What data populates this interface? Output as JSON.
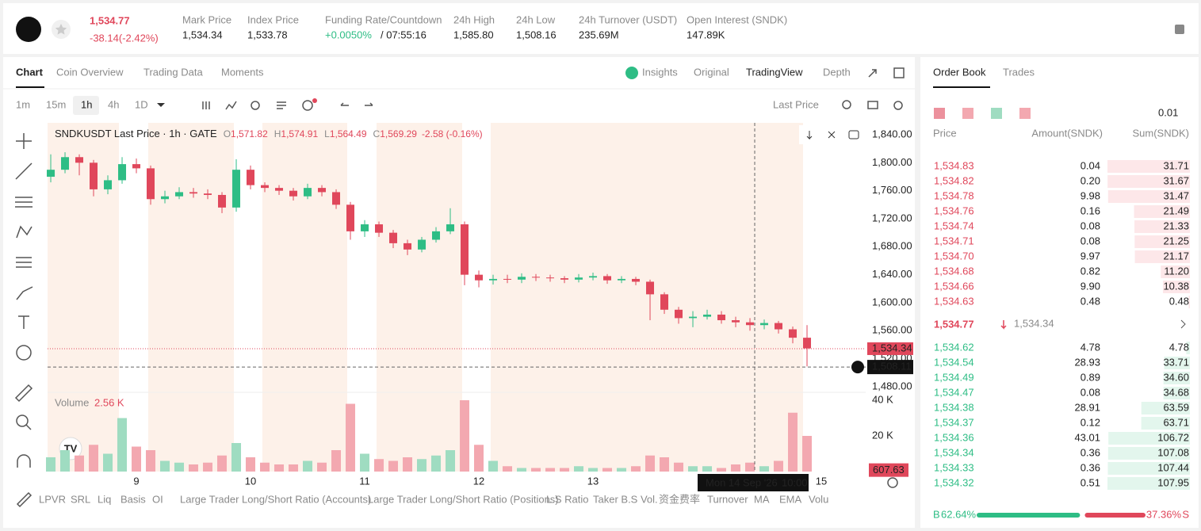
{
  "header": {
    "price": "1,534.77",
    "change": "-38.14(-2.42%)",
    "stats": [
      {
        "label": "Mark Price",
        "value": "1,534.34"
      },
      {
        "label": "Index Price",
        "value": "1,533.78"
      },
      {
        "label": "Funding Rate/Countdown",
        "value": "+0.0050%",
        "countdown": "/ 07:55:16"
      },
      {
        "label": "24h High",
        "value": "1,585.80"
      },
      {
        "label": "24h Low",
        "value": "1,508.16"
      },
      {
        "label": "24h Turnover (USDT)",
        "value": "235.69M"
      },
      {
        "label": "Open Interest (SNDK)",
        "value": "147.89K"
      }
    ]
  },
  "chart_tabs": [
    "Chart",
    "Coin Overview",
    "Trading Data",
    "Moments"
  ],
  "view_tabs": [
    "Insights",
    "Original",
    "TradingView",
    "Depth"
  ],
  "intervals": [
    "1m",
    "15m",
    "1h",
    "4h",
    "1D"
  ],
  "price_type": "Last Price",
  "legend": {
    "title": "SNDKUSDT Last Price · 1h · GATE",
    "ohlc": [
      {
        "k": "O",
        "v": "1,571.82"
      },
      {
        "k": "H",
        "v": "1,574.91"
      },
      {
        "k": "L",
        "v": "1,564.49"
      },
      {
        "k": "C",
        "v": "1,569.29"
      }
    ],
    "change": "-2.58 (-0.16%)",
    "volume_title": "Volume",
    "volume_value": "2.56 K"
  },
  "indicators": [
    "LPVR",
    "SRL",
    "Liq",
    "Basis",
    "OI",
    "Large Trader Long/Short Ratio (Accounts)",
    "Large Trader Long/Short Ratio (Positions)",
    "L.S Ratio",
    "Taker B.S Vol.",
    "资金费率",
    "Turnover",
    "MA",
    "EMA",
    "Volu"
  ],
  "chart_data": {
    "type": "candlestick",
    "x": [
      -18,
      -15,
      -12,
      -9,
      -6,
      -3,
      0,
      3,
      6,
      9,
      12,
      15,
      18,
      21,
      24,
      27,
      30,
      33,
      36,
      39,
      42,
      45,
      48,
      51,
      54,
      57,
      60,
      63,
      66,
      69,
      72,
      75,
      78,
      81,
      84,
      87,
      90,
      93,
      96,
      99,
      102,
      105,
      108,
      111,
      114,
      117,
      120,
      123,
      126,
      129,
      132,
      135,
      138,
      141
    ],
    "open": [
      1780,
      1790,
      1808,
      1800,
      1762,
      1775,
      1798,
      1792,
      1748,
      1752,
      1758,
      1756,
      1754,
      1736,
      1790,
      1768,
      1764,
      1760,
      1752,
      1764,
      1758,
      1740,
      1702,
      1712,
      1700,
      1685,
      1676,
      1690,
      1702,
      1712,
      1640,
      1632,
      1634,
      1633,
      1637,
      1636,
      1635,
      1633,
      1636,
      1638,
      1632,
      1634,
      1630,
      1612,
      1590,
      1578,
      1580,
      1583,
      1575,
      1572,
      1568,
      1571,
      1562,
      1550
    ],
    "high": [
      1812,
      1815,
      1812,
      1804,
      1782,
      1808,
      1806,
      1796,
      1760,
      1765,
      1764,
      1762,
      1758,
      1805,
      1796,
      1772,
      1768,
      1764,
      1770,
      1768,
      1762,
      1744,
      1718,
      1716,
      1704,
      1690,
      1694,
      1708,
      1735,
      1716,
      1646,
      1640,
      1640,
      1642,
      1641,
      1640,
      1638,
      1641,
      1643,
      1641,
      1638,
      1637,
      1633,
      1615,
      1594,
      1588,
      1590,
      1588,
      1580,
      1578,
      1576,
      1574,
      1566,
      1568
    ],
    "low": [
      1772,
      1785,
      1782,
      1752,
      1755,
      1770,
      1785,
      1740,
      1742,
      1748,
      1750,
      1748,
      1728,
      1730,
      1762,
      1758,
      1754,
      1746,
      1748,
      1752,
      1734,
      1690,
      1694,
      1694,
      1678,
      1668,
      1672,
      1686,
      1698,
      1625,
      1622,
      1626,
      1628,
      1628,
      1631,
      1630,
      1628,
      1629,
      1632,
      1627,
      1628,
      1625,
      1575,
      1584,
      1570,
      1565,
      1576,
      1570,
      1565,
      1560,
      1562,
      1556,
      1542,
      1509
    ],
    "close": [
      1790,
      1808,
      1800,
      1762,
      1775,
      1798,
      1792,
      1748,
      1752,
      1758,
      1756,
      1754,
      1736,
      1790,
      1768,
      1764,
      1760,
      1752,
      1764,
      1758,
      1740,
      1702,
      1712,
      1700,
      1685,
      1676,
      1690,
      1702,
      1712,
      1640,
      1632,
      1634,
      1633,
      1637,
      1636,
      1635,
      1633,
      1636,
      1638,
      1632,
      1634,
      1630,
      1612,
      1590,
      1578,
      1580,
      1583,
      1575,
      1572,
      1568,
      1571,
      1562,
      1550,
      1534.77
    ],
    "volume": [
      8000,
      12000,
      9000,
      15000,
      10000,
      30000,
      14000,
      12000,
      6000,
      5000,
      4000,
      5000,
      9000,
      16000,
      8000,
      5000,
      4000,
      4000,
      6000,
      5000,
      12000,
      38000,
      10000,
      7000,
      6000,
      8000,
      7000,
      9000,
      12000,
      40000,
      15000,
      6000,
      3000,
      2000,
      2000,
      2000,
      2000,
      3000,
      2000,
      2000,
      2000,
      3000,
      9000,
      8000,
      5000,
      3000,
      3000,
      2000,
      4000,
      5000,
      3000,
      6000,
      33000,
      20000
    ],
    "xlim": [
      -18.67,
      153.33
    ],
    "xticks": [
      {
        "value": 0,
        "label": "9"
      },
      {
        "value": 24,
        "label": "10"
      },
      {
        "value": 48,
        "label": "11"
      },
      {
        "value": 72,
        "label": "12"
      },
      {
        "value": 96,
        "label": "13"
      },
      {
        "value": 144,
        "label": "15"
      }
    ],
    "ylim": [
      1472,
      1857
    ],
    "yticks": [
      {
        "value": 1480,
        "label": "1,480.00"
      },
      {
        "value": 1520,
        "label": "1,520.00"
      },
      {
        "value": 1560,
        "label": "1,560.00"
      },
      {
        "value": 1600,
        "label": "1,600.00"
      },
      {
        "value": 1640,
        "label": "1,640.00"
      },
      {
        "value": 1680,
        "label": "1,680.00"
      },
      {
        "value": 1720,
        "label": "1,720.00"
      },
      {
        "value": 1760,
        "label": "1,760.00"
      },
      {
        "value": 1800,
        "label": "1,800.00"
      },
      {
        "value": 1840,
        "label": "1,840.00"
      }
    ],
    "vlim": [
      0,
      44444
    ],
    "vticks": [
      {
        "value": 20000,
        "label": "20 K"
      },
      {
        "value": 40000,
        "label": "40 K"
      }
    ],
    "up_color": "#2ebd85",
    "down_color": "#e0475b",
    "up_volume_color": "#9fdcc1",
    "down_volume_color": "#f3a8b0",
    "last_price": {
      "value": 1534.34,
      "label": "1,534.34"
    },
    "crosshair": {
      "value": 1508.11,
      "label": "1,508.11",
      "x": 130,
      "date": "Mon 14 Sep '26",
      "time": "10:00"
    },
    "current_volume": {
      "value": 607.63,
      "label": "607.63"
    }
  },
  "order_book": {
    "tabs": [
      "Order Book",
      "Trades"
    ],
    "precision": "0.01",
    "headers": [
      "Price",
      "Amount(SNDK)",
      "Sum(SNDK)"
    ],
    "asks": [
      {
        "price": "1,534.83",
        "amount": "0.04",
        "sum": "31.71"
      },
      {
        "price": "1,534.82",
        "amount": "0.20",
        "sum": "31.67"
      },
      {
        "price": "1,534.78",
        "amount": "9.98",
        "sum": "31.47"
      },
      {
        "price": "1,534.76",
        "amount": "0.16",
        "sum": "21.49"
      },
      {
        "price": "1,534.74",
        "amount": "0.08",
        "sum": "21.33"
      },
      {
        "price": "1,534.71",
        "amount": "0.08",
        "sum": "21.25"
      },
      {
        "price": "1,534.70",
        "amount": "9.97",
        "sum": "21.17"
      },
      {
        "price": "1,534.68",
        "amount": "0.82",
        "sum": "11.20"
      },
      {
        "price": "1,534.66",
        "amount": "9.90",
        "sum": "10.38"
      },
      {
        "price": "1,534.63",
        "amount": "0.48",
        "sum": "0.48"
      }
    ],
    "mid_price": "1,534.77",
    "mark_price": "1,534.34",
    "bids": [
      {
        "price": "1,534.62",
        "amount": "4.78",
        "sum": "4.78"
      },
      {
        "price": "1,534.54",
        "amount": "28.93",
        "sum": "33.71"
      },
      {
        "price": "1,534.49",
        "amount": "0.89",
        "sum": "34.60"
      },
      {
        "price": "1,534.47",
        "amount": "0.08",
        "sum": "34.68"
      },
      {
        "price": "1,534.38",
        "amount": "28.91",
        "sum": "63.59"
      },
      {
        "price": "1,534.37",
        "amount": "0.12",
        "sum": "63.71"
      },
      {
        "price": "1,534.36",
        "amount": "43.01",
        "sum": "106.72"
      },
      {
        "price": "1,534.34",
        "amount": "0.36",
        "sum": "107.08"
      },
      {
        "price": "1,534.33",
        "amount": "0.36",
        "sum": "107.44"
      },
      {
        "price": "1,534.32",
        "amount": "0.51",
        "sum": "107.95"
      }
    ],
    "buy_label": "B",
    "sell_label": "S",
    "buy_ratio": {
      "value": 62.64,
      "label": "62.64%"
    },
    "sell_ratio": {
      "value": 37.36,
      "label": "37.36%"
    }
  }
}
